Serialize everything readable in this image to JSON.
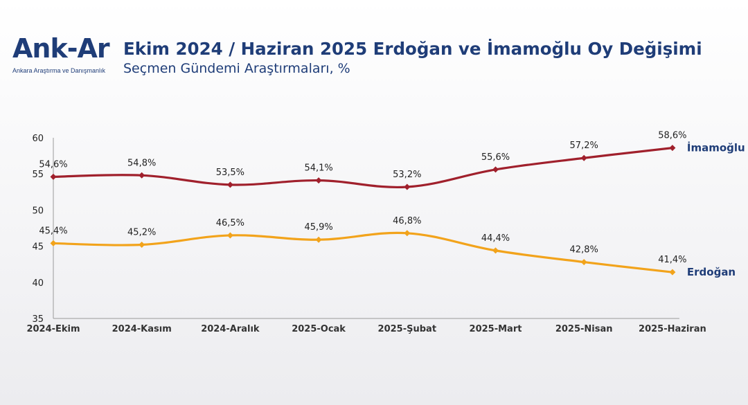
{
  "logo": {
    "name": "Ank-Ar",
    "tagline": "Ankara Araştırma ve Danışmanlık"
  },
  "header": {
    "title": "Ekim 2024 / Haziran 2025 Erdoğan ve İmamoğlu Oy Değişimi",
    "subtitle": "Seçmen Gündemi Araştırmaları, %"
  },
  "chart_data": {
    "type": "line",
    "title": "Ekim 2024 / Haziran 2025 Erdoğan ve İmamoğlu Oy Değişimi",
    "subtitle": "Seçmen Gündemi Araştırmaları, %",
    "categories": [
      "2024-Ekim",
      "2024-Kasım",
      "2024-Aralık",
      "2025-Ocak",
      "2025-Şubat",
      "2025-Mart",
      "2025-Nisan",
      "2025-Haziran"
    ],
    "ylim": [
      35,
      60
    ],
    "yticks": [
      35,
      40,
      45,
      50,
      55,
      60
    ],
    "grid": false,
    "series": [
      {
        "name": "İmamoğlu",
        "color": "#a0202c",
        "values": [
          54.6,
          54.8,
          53.5,
          54.1,
          53.2,
          55.6,
          57.2,
          58.6
        ],
        "labels": [
          "54,6%",
          "54,8%",
          "53,5%",
          "54,1%",
          "53,2%",
          "55,6%",
          "57,2%",
          "58,6%"
        ]
      },
      {
        "name": "Erdoğan",
        "color": "#f2a31b",
        "values": [
          45.4,
          45.2,
          46.5,
          45.9,
          46.8,
          44.4,
          42.8,
          41.4
        ],
        "labels": [
          "45,4%",
          "45,2%",
          "46,5%",
          "45,9%",
          "46,8%",
          "44,4%",
          "42,8%",
          "41,4%"
        ]
      }
    ],
    "legend": "series names at right end of lines"
  }
}
